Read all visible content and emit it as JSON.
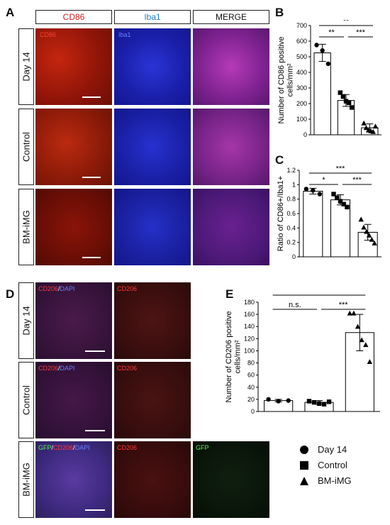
{
  "panel_labels": {
    "A": "A",
    "B": "B",
    "C": "C",
    "D": "D",
    "E": "E"
  },
  "panel_a": {
    "headers": [
      "CD86",
      "Iba1",
      "MERGE"
    ],
    "header_colors": [
      "#d42020",
      "#1f7fd6",
      "#000000"
    ],
    "rows": [
      "Day 14",
      "Control",
      "BM-iMG"
    ],
    "channel_overlays": [
      "CD86",
      "Iba1"
    ]
  },
  "panel_d": {
    "rows": [
      "Day 14",
      "Control",
      "BM-iMG"
    ],
    "row1_overlays": {
      "left_red": "CD206",
      "left_sep": "/",
      "left_blue": "DAPI",
      "right_red": "CD206"
    },
    "row2_overlays": {
      "left_red": "CD206",
      "left_sep": "/",
      "left_blue": "DAPI",
      "right_red": "CD206"
    },
    "row3_overlays": {
      "left_green": "GFP",
      "left_sep1": "/",
      "left_red": "CD206",
      "left_sep2": "/",
      "left_blue": "DAPI",
      "mid_red": "CD206",
      "right_green": "GFP"
    }
  },
  "legend": {
    "items": [
      {
        "marker": "circle",
        "label": "Day 14"
      },
      {
        "marker": "square",
        "label": "Control"
      },
      {
        "marker": "triangle",
        "label": "BM-iMG"
      }
    ]
  },
  "chart_data": [
    {
      "panel": "B",
      "type": "bar",
      "ylabel_line1": "Number of CD86 positive",
      "ylabel_line2": "cells/mm²",
      "ylim": [
        0,
        700
      ],
      "yticks": [
        0,
        100,
        200,
        300,
        400,
        500,
        600,
        700
      ],
      "categories": [
        "Day 14",
        "Control",
        "BM-iMG"
      ],
      "values": [
        525,
        220,
        45
      ],
      "errors": [
        55,
        38,
        25
      ],
      "points": [
        [
          575,
          540,
          455
        ],
        [
          270,
          245,
          215,
          205,
          175
        ],
        [
          75,
          45,
          30,
          25,
          20,
          55
        ]
      ],
      "markers": [
        "circle",
        "square",
        "triangle"
      ],
      "significance": [
        {
          "from": 0,
          "to": 2,
          "label": "**",
          "level": 1
        },
        {
          "from": 0,
          "to": 1,
          "label": "**",
          "level": 0
        },
        {
          "from": 1,
          "to": 2,
          "label": "***",
          "level": 0
        }
      ]
    },
    {
      "panel": "C",
      "type": "bar",
      "ylabel_line1": "Ratio of CD86+/Iba1+",
      "ylabel_line2": "",
      "ylim": [
        0,
        1.2
      ],
      "yticks": [
        0,
        0.2,
        0.4,
        0.6,
        0.8,
        1,
        1.2
      ],
      "ytick_labels": [
        "0",
        "0.2",
        "0.4",
        "0.6",
        "0.8",
        "1",
        "1.2"
      ],
      "categories": [
        "Day 14",
        "Control",
        "BM-iMG"
      ],
      "values": [
        0.91,
        0.79,
        0.34
      ],
      "errors": [
        0.04,
        0.07,
        0.11
      ],
      "points": [
        [
          0.94,
          0.92,
          0.87
        ],
        [
          0.87,
          0.82,
          0.77,
          0.73,
          0.69
        ],
        [
          0.52,
          0.41,
          0.35,
          0.3,
          0.24,
          0.19
        ]
      ],
      "markers": [
        "circle",
        "square",
        "triangle"
      ],
      "significance": [
        {
          "from": 0,
          "to": 2,
          "label": "***",
          "level": 1
        },
        {
          "from": 0,
          "to": 1,
          "label": "*",
          "level": 0
        },
        {
          "from": 1,
          "to": 2,
          "label": "***",
          "level": 0
        }
      ]
    },
    {
      "panel": "E",
      "type": "bar",
      "ylabel_line1": "Number of CD206 positive",
      "ylabel_line2": "cells/mm²",
      "ylim": [
        0,
        180
      ],
      "yticks": [
        0,
        20,
        40,
        60,
        80,
        100,
        120,
        140,
        160,
        180
      ],
      "categories": [
        "Day 14",
        "Control",
        "BM-iMG"
      ],
      "values": [
        18,
        15,
        130
      ],
      "errors": [
        2,
        3,
        30
      ],
      "points": [
        [
          20,
          17,
          18
        ],
        [
          17,
          15,
          13,
          12,
          16
        ],
        [
          162,
          162,
          140,
          118,
          110,
          82
        ]
      ],
      "markers": [
        "circle",
        "square",
        "triangle"
      ],
      "significance": [
        {
          "from": 0,
          "to": 2,
          "label": "***",
          "level": 1
        },
        {
          "from": 0,
          "to": 1,
          "label": "n.s.",
          "level": 0
        },
        {
          "from": 1,
          "to": 2,
          "label": "***",
          "level": 0
        }
      ]
    }
  ]
}
